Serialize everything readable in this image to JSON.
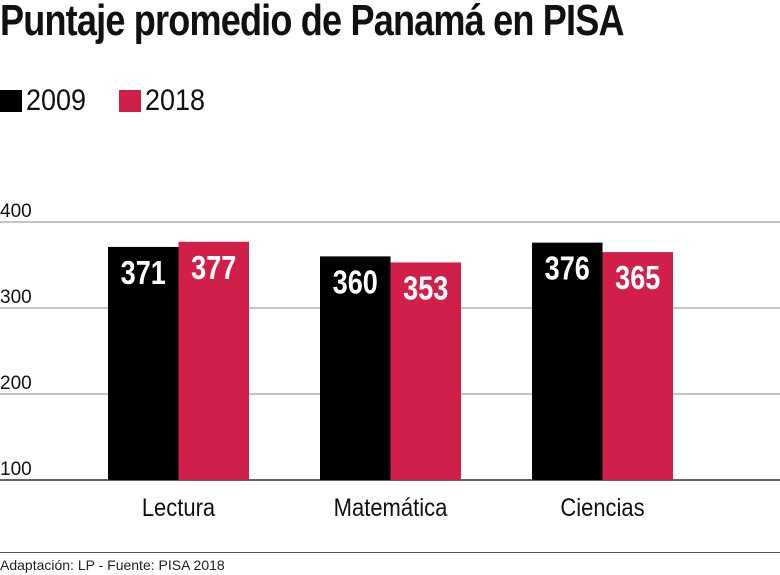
{
  "chart_data": {
    "type": "bar",
    "title": "Puntaje promedio de Panamá en PISA",
    "categories": [
      "Lectura",
      "Matemática",
      "Ciencias"
    ],
    "series": [
      {
        "name": "2009",
        "values": [
          371,
          360,
          376
        ],
        "color": "#000000"
      },
      {
        "name": "2018",
        "values": [
          377,
          353,
          365
        ],
        "color": "#d0204a"
      }
    ],
    "ylim": [
      100,
      400
    ],
    "yticks": [
      "100",
      "200",
      "300",
      "400"
    ],
    "grid": true,
    "legend": "top-left",
    "xlabel": "",
    "ylabel": ""
  },
  "footer": "Adaptación: LP - Fuente: PISA 2018"
}
